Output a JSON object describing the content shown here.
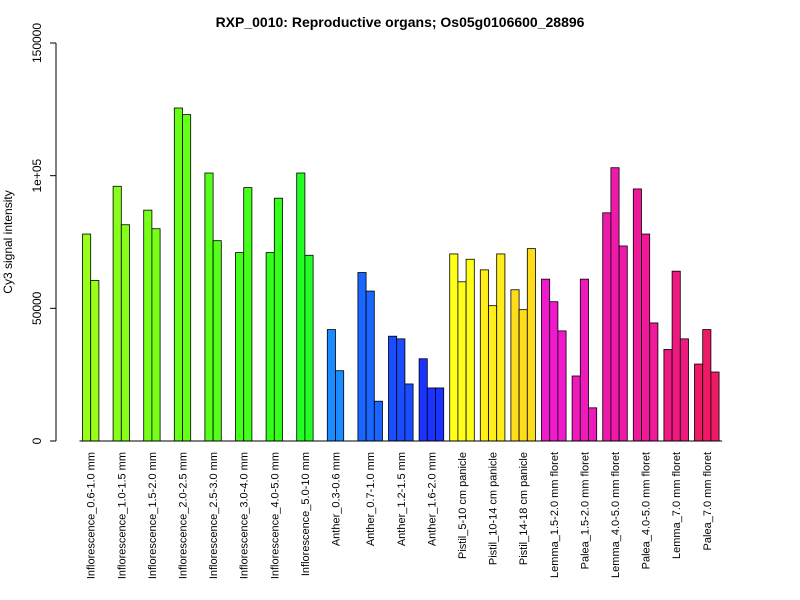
{
  "chart_data": {
    "type": "bar",
    "title": "RXP_0010: Reproductive organs; Os05g0106600_28896",
    "ylabel": "Cy3 signal intensity",
    "xlabel": "",
    "ylim": [
      0,
      150000
    ],
    "yticks": [
      {
        "value": 0,
        "label": "0"
      },
      {
        "value": 50000,
        "label": "50000"
      },
      {
        "value": 100000,
        "label": "1e+05"
      },
      {
        "value": 150000,
        "label": "150000"
      }
    ],
    "grid": false,
    "legend": "none",
    "groups": [
      {
        "label": "Inflorescence_0.6-1.0 mm",
        "values": [
          78000,
          60500
        ],
        "color": "#99ff1a"
      },
      {
        "label": "Inflorescence_1.0-1.5 mm",
        "values": [
          96000,
          81500
        ],
        "color": "#88ff1a"
      },
      {
        "label": "Inflorescence_1.5-2.0 mm",
        "values": [
          87000,
          80000
        ],
        "color": "#77ff1a"
      },
      {
        "label": "Inflorescence_2.0-2.5 mm",
        "values": [
          125500,
          123000
        ],
        "color": "#66ff1a"
      },
      {
        "label": "Inflorescence_2.5-3.0 mm",
        "values": [
          101000,
          75500
        ],
        "color": "#55ff1a"
      },
      {
        "label": "Inflorescence_3.0-4.0 mm",
        "values": [
          71000,
          95500
        ],
        "color": "#44ff1a"
      },
      {
        "label": "Inflorescence_4.0-5.0 mm",
        "values": [
          71000,
          91500
        ],
        "color": "#33ff1a"
      },
      {
        "label": "Inflorescence_5.0-10 mm",
        "values": [
          101000,
          70000
        ],
        "color": "#22ff22"
      },
      {
        "label": "Anther_0.3-0.6 mm",
        "values": [
          42000,
          26500
        ],
        "color": "#1a8cff"
      },
      {
        "label": "Anther_0.7-1.0 mm",
        "values": [
          63500,
          56500,
          15000
        ],
        "color": "#1a66ff"
      },
      {
        "label": "Anther_1.2-1.5 mm",
        "values": [
          39500,
          38500,
          21500
        ],
        "color": "#1a4dff"
      },
      {
        "label": "Anther_1.6-2.0 mm",
        "values": [
          31000,
          20000,
          20000
        ],
        "color": "#1a33ff"
      },
      {
        "label": "Pistil_5-10 cm panicle",
        "values": [
          70500,
          60000,
          68500
        ],
        "color": "#ffff1a"
      },
      {
        "label": "Pistil_10-14 cm panicle",
        "values": [
          64500,
          51000,
          70500
        ],
        "color": "#ffee1a"
      },
      {
        "label": "Pistil_14-18 cm panicle",
        "values": [
          57000,
          49500,
          72500
        ],
        "color": "#ffdd1a"
      },
      {
        "label": "Lemma_1.5-2.0 mm floret",
        "values": [
          61000,
          52500,
          41500
        ],
        "color": "#ee1acc"
      },
      {
        "label": "Palea_1.5-2.0 mm floret",
        "values": [
          24500,
          61000,
          12500
        ],
        "color": "#ee1abb"
      },
      {
        "label": "Lemma_4.0-5.0 mm floret",
        "values": [
          86000,
          103000,
          73500
        ],
        "color": "#ee1aaa"
      },
      {
        "label": "Palea_4.0-5.0 mm floret",
        "values": [
          95000,
          78000,
          44500
        ],
        "color": "#ee1a99"
      },
      {
        "label": "Lemma_7.0 mm floret",
        "values": [
          34500,
          64000,
          38500
        ],
        "color": "#ee1a80"
      },
      {
        "label": "Palea_7.0 mm floret",
        "values": [
          29000,
          42000,
          26000
        ],
        "color": "#ee1a66"
      }
    ]
  }
}
